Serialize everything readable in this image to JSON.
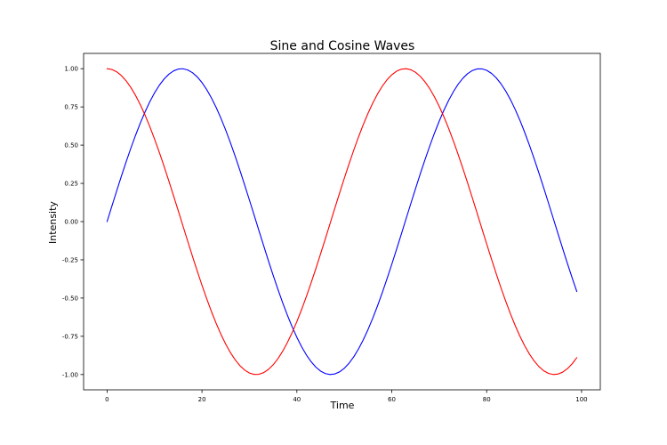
{
  "chart_data": {
    "type": "line",
    "title": "Sine and Cosine Waves",
    "xlabel": "Time",
    "ylabel": "Intensity",
    "xlim": [
      -4.95,
      103.95
    ],
    "ylim": [
      -1.1,
      1.1
    ],
    "x_ticks": [
      0,
      20,
      40,
      60,
      80,
      100
    ],
    "x_tick_labels": [
      "0",
      "20",
      "40",
      "60",
      "80",
      "100"
    ],
    "y_ticks": [
      1.0,
      0.75,
      0.5,
      0.25,
      0.0,
      -0.25,
      -0.5,
      -0.75,
      -1.0
    ],
    "y_tick_labels": [
      "1.00",
      "0.75",
      "0.50",
      "0.25",
      "0.00",
      "-0.25",
      "-0.50",
      "-0.75",
      "-1.00"
    ],
    "grid": false,
    "legend": false,
    "x": [
      0,
      1,
      2,
      3,
      4,
      5,
      6,
      7,
      8,
      9,
      10,
      11,
      12,
      13,
      14,
      15,
      16,
      17,
      18,
      19,
      20,
      21,
      22,
      23,
      24,
      25,
      26,
      27,
      28,
      29,
      30,
      31,
      32,
      33,
      34,
      35,
      36,
      37,
      38,
      39,
      40,
      41,
      42,
      43,
      44,
      45,
      46,
      47,
      48,
      49,
      50,
      51,
      52,
      53,
      54,
      55,
      56,
      57,
      58,
      59,
      60,
      61,
      62,
      63,
      64,
      65,
      66,
      67,
      68,
      69,
      70,
      71,
      72,
      73,
      74,
      75,
      76,
      77,
      78,
      79,
      80,
      81,
      82,
      83,
      84,
      85,
      86,
      87,
      88,
      89,
      90,
      91,
      92,
      93,
      94,
      95,
      96,
      97,
      98,
      99
    ],
    "series": [
      {
        "color": "#0000ff",
        "values": [
          0.0,
          0.0998,
          0.1987,
          0.2955,
          0.3894,
          0.4794,
          0.5646,
          0.6442,
          0.7174,
          0.7833,
          0.8415,
          0.8912,
          0.932,
          0.9636,
          0.9854,
          0.9975,
          0.9996,
          0.9917,
          0.9738,
          0.9463,
          0.9093,
          0.8632,
          0.8085,
          0.7457,
          0.6755,
          0.5985,
          0.5155,
          0.4274,
          0.335,
          0.2392,
          0.1411,
          0.0416,
          -0.0584,
          -0.1577,
          -0.2555,
          -0.3508,
          -0.4425,
          -0.5298,
          -0.6119,
          -0.6878,
          -0.7568,
          -0.8183,
          -0.8716,
          -0.9162,
          -0.9516,
          -0.9775,
          -0.9937,
          -0.9999,
          -0.9962,
          -0.9825,
          -0.9589,
          -0.9258,
          -0.8835,
          -0.8323,
          -0.7728,
          -0.7055,
          -0.6313,
          -0.5507,
          -0.4646,
          -0.3739,
          -0.2794,
          -0.1822,
          -0.0831,
          0.0168,
          0.1165,
          0.2151,
          0.3115,
          0.4048,
          0.494,
          0.5784,
          0.657,
          0.729,
          0.7937,
          0.8504,
          0.8987,
          0.938,
          0.9679,
          0.9882,
          0.9985,
          0.9989,
          0.9894,
          0.9699,
          0.9407,
          0.9022,
          0.8546,
          0.7985,
          0.7344,
          0.663,
          0.5849,
          0.501,
          0.4121,
          0.319,
          0.2229,
          0.1245,
          0.0248,
          -0.0752,
          -0.1743,
          -0.2718,
          -0.3665,
          -0.4575
        ]
      },
      {
        "color": "#ff0000",
        "values": [
          1.0,
          0.995,
          0.9801,
          0.9553,
          0.9211,
          0.8776,
          0.8253,
          0.7648,
          0.6967,
          0.6216,
          0.5403,
          0.4536,
          0.3624,
          0.2675,
          0.17,
          0.0707,
          -0.0292,
          -0.1288,
          -0.2272,
          -0.3233,
          -0.4161,
          -0.5048,
          -0.5885,
          -0.6663,
          -0.7374,
          -0.8011,
          -0.8569,
          -0.904,
          -0.9422,
          -0.971,
          -0.99,
          -0.9991,
          -0.9983,
          -0.9875,
          -0.9668,
          -0.9365,
          -0.8968,
          -0.8481,
          -0.791,
          -0.7259,
          -0.6536,
          -0.5748,
          -0.4903,
          -0.4008,
          -0.3073,
          -0.2108,
          -0.1122,
          -0.0124,
          0.0875,
          0.1865,
          0.2837,
          0.378,
          0.4685,
          0.5544,
          0.6347,
          0.7087,
          0.7756,
          0.8347,
          0.8855,
          0.9275,
          0.9602,
          0.9833,
          0.9965,
          0.9999,
          0.9932,
          0.9766,
          0.9502,
          0.9144,
          0.8694,
          0.8157,
          0.7539,
          0.6845,
          0.6084,
          0.5261,
          0.4385,
          0.3466,
          0.2513,
          0.1534,
          0.054,
          -0.046,
          -0.1455,
          -0.2435,
          -0.3392,
          -0.4314,
          -0.5193,
          -0.602,
          -0.6787,
          -0.7486,
          -0.8111,
          -0.8654,
          -0.9111,
          -0.9477,
          -0.9748,
          -0.9922,
          -0.9997,
          -0.9972,
          -0.9847,
          -0.9624,
          -0.9304,
          -0.8892
        ]
      }
    ]
  }
}
